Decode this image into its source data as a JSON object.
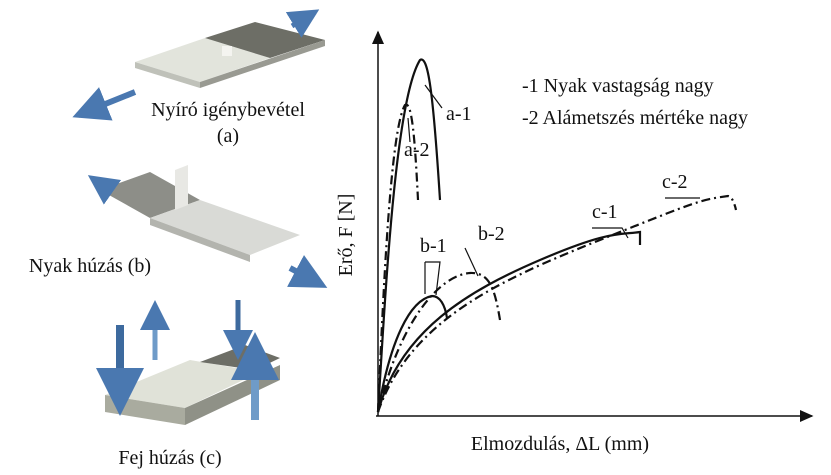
{
  "figure": {
    "left": {
      "shear": {
        "title": "Nyíró igénybevétel",
        "sub": "(a)"
      },
      "neck": {
        "title": "Nyak húzás (b)"
      },
      "head": {
        "title": "Fej húzás (c)"
      }
    },
    "chart": {
      "y_label": "Erő, F [N]",
      "x_label": "Elmozdulás, ΔL (mm)",
      "legend": [
        "-1 Nyak vastagság nagy",
        "-2 Alámetszés mértéke nagy"
      ],
      "curves": [
        "a-1",
        "a-2",
        "b-1",
        "b-2",
        "c-1",
        "c-2"
      ]
    }
  }
}
